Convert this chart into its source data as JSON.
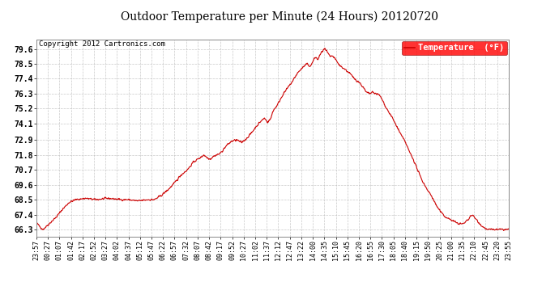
{
  "title": "Outdoor Temperature per Minute (24 Hours) 20120720",
  "copyright": "Copyright 2012 Cartronics.com",
  "legend_label": "Temperature  (°F)",
  "line_color": "#cc0000",
  "background_color": "#ffffff",
  "grid_color": "#bbbbbb",
  "yticks": [
    66.3,
    67.4,
    68.5,
    69.6,
    70.7,
    71.8,
    72.9,
    74.1,
    75.2,
    76.3,
    77.4,
    78.5,
    79.6
  ],
  "ylim": [
    65.8,
    80.3
  ],
  "total_minutes": 1440,
  "x_tick_labels": [
    "23:57",
    "00:27",
    "01:07",
    "01:42",
    "02:17",
    "02:52",
    "03:27",
    "04:02",
    "04:37",
    "05:12",
    "05:47",
    "06:22",
    "06:57",
    "07:32",
    "08:07",
    "08:42",
    "09:17",
    "09:52",
    "10:27",
    "11:02",
    "11:37",
    "12:12",
    "12:47",
    "13:22",
    "14:00",
    "14:35",
    "15:10",
    "15:45",
    "16:20",
    "16:55",
    "17:30",
    "18:05",
    "18:40",
    "19:15",
    "19:50",
    "20:25",
    "21:00",
    "21:35",
    "22:10",
    "22:45",
    "23:20",
    "23:55"
  ],
  "keypoints": [
    [
      0,
      66.8
    ],
    [
      20,
      66.3
    ],
    [
      60,
      67.2
    ],
    [
      80,
      67.8
    ],
    [
      100,
      68.3
    ],
    [
      120,
      68.5
    ],
    [
      150,
      68.6
    ],
    [
      180,
      68.5
    ],
    [
      220,
      68.6
    ],
    [
      260,
      68.5
    ],
    [
      280,
      68.5
    ],
    [
      310,
      68.4
    ],
    [
      340,
      68.5
    ],
    [
      360,
      68.5
    ],
    [
      380,
      68.8
    ],
    [
      400,
      69.2
    ],
    [
      420,
      69.7
    ],
    [
      440,
      70.3
    ],
    [
      460,
      70.7
    ],
    [
      480,
      71.3
    ],
    [
      500,
      71.6
    ],
    [
      510,
      71.8
    ],
    [
      520,
      71.6
    ],
    [
      530,
      71.5
    ],
    [
      540,
      71.7
    ],
    [
      550,
      71.8
    ],
    [
      560,
      71.9
    ],
    [
      570,
      72.2
    ],
    [
      580,
      72.5
    ],
    [
      595,
      72.8
    ],
    [
      610,
      72.9
    ],
    [
      625,
      72.7
    ],
    [
      640,
      73.0
    ],
    [
      655,
      73.4
    ],
    [
      670,
      73.9
    ],
    [
      685,
      74.3
    ],
    [
      695,
      74.5
    ],
    [
      705,
      74.2
    ],
    [
      715,
      74.5
    ],
    [
      720,
      75.0
    ],
    [
      735,
      75.5
    ],
    [
      750,
      76.2
    ],
    [
      765,
      76.7
    ],
    [
      780,
      77.2
    ],
    [
      795,
      77.8
    ],
    [
      810,
      78.2
    ],
    [
      825,
      78.5
    ],
    [
      835,
      78.3
    ],
    [
      843,
      78.7
    ],
    [
      850,
      79.0
    ],
    [
      858,
      78.8
    ],
    [
      863,
      79.1
    ],
    [
      870,
      79.4
    ],
    [
      878,
      79.6
    ],
    [
      885,
      79.4
    ],
    [
      890,
      79.2
    ],
    [
      895,
      79.0
    ],
    [
      900,
      79.1
    ],
    [
      905,
      79.0
    ],
    [
      912,
      78.8
    ],
    [
      920,
      78.5
    ],
    [
      928,
      78.3
    ],
    [
      935,
      78.2
    ],
    [
      945,
      78.0
    ],
    [
      955,
      77.8
    ],
    [
      965,
      77.5
    ],
    [
      975,
      77.3
    ],
    [
      985,
      77.1
    ],
    [
      995,
      76.8
    ],
    [
      1005,
      76.4
    ],
    [
      1015,
      76.3
    ],
    [
      1025,
      76.4
    ],
    [
      1035,
      76.3
    ],
    [
      1045,
      76.2
    ],
    [
      1055,
      75.8
    ],
    [
      1065,
      75.3
    ],
    [
      1075,
      74.9
    ],
    [
      1085,
      74.5
    ],
    [
      1100,
      73.8
    ],
    [
      1115,
      73.1
    ],
    [
      1125,
      72.7
    ],
    [
      1135,
      72.1
    ],
    [
      1148,
      71.5
    ],
    [
      1158,
      70.9
    ],
    [
      1168,
      70.3
    ],
    [
      1180,
      69.7
    ],
    [
      1195,
      69.1
    ],
    [
      1208,
      68.6
    ],
    [
      1220,
      68.0
    ],
    [
      1235,
      67.5
    ],
    [
      1248,
      67.2
    ],
    [
      1265,
      67.0
    ],
    [
      1280,
      66.8
    ],
    [
      1295,
      66.7
    ],
    [
      1305,
      66.8
    ],
    [
      1318,
      67.1
    ],
    [
      1325,
      67.4
    ],
    [
      1335,
      67.2
    ],
    [
      1345,
      66.9
    ],
    [
      1360,
      66.5
    ],
    [
      1375,
      66.3
    ],
    [
      1400,
      66.3
    ],
    [
      1420,
      66.3
    ],
    [
      1439,
      66.3
    ]
  ]
}
